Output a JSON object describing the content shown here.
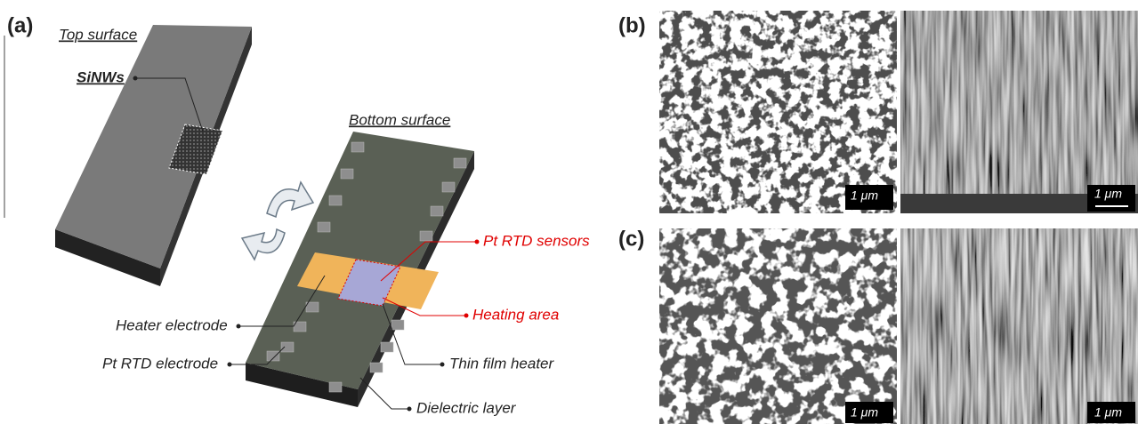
{
  "panel_a": {
    "label": "(a)",
    "top_surface": "Top surface",
    "sinws": "SiNWs",
    "bottom_surface": "Bottom surface",
    "callouts": {
      "pt_rtd_sensors": "Pt RTD sensors",
      "heating_area": "Heating area",
      "heater_electrode": "Heater electrode",
      "pt_rtd_electrode": "Pt RTD electrode",
      "thin_film_heater": "Thin film heater",
      "dielectric_layer": "Dielectric layer"
    }
  },
  "panel_b": {
    "label": "(b)",
    "scale_bars": [
      "1 μm",
      "1 μm"
    ]
  },
  "panel_c": {
    "label": "(c)",
    "scale_bars": [
      "1 μm",
      "1 μm"
    ]
  }
}
